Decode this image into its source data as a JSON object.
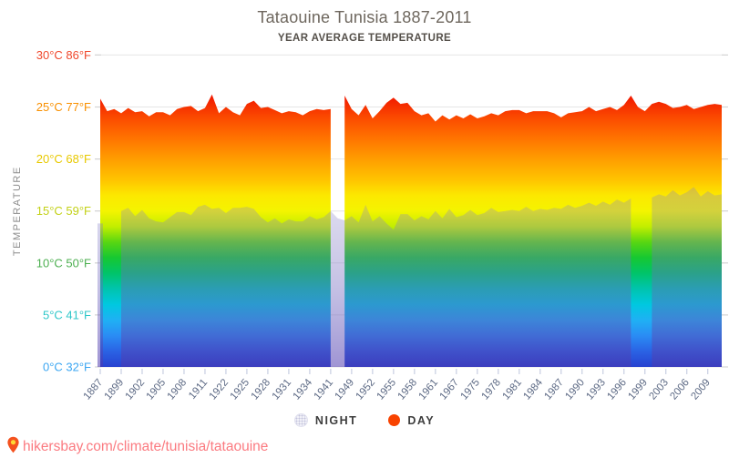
{
  "header": {
    "title": "Tataouine Tunisia 1887-2011",
    "subtitle": "YEAR AVERAGE TEMPERATURE"
  },
  "legend": {
    "night_label": "NIGHT",
    "day_label": "DAY",
    "night_color": "#ededf6",
    "day_color": "#f84300"
  },
  "footer": {
    "url_text": "hikersbay.com/climate/tunisia/tataouine",
    "text_color": "#fb7a80",
    "pin_color": "#f4511e",
    "pin_dot_color": "#fdd835"
  },
  "axes": {
    "y_title": "TEMPERATURE",
    "y_title_color": "#8c8c8c",
    "y_ticks": [
      {
        "label": "30°C 86°F",
        "t": 30,
        "color": "#f0482c"
      },
      {
        "label": "25°C 77°F",
        "t": 25,
        "color": "#f99000"
      },
      {
        "label": "20°C 68°F",
        "t": 20,
        "color": "#e8c900"
      },
      {
        "label": "15°C 59°F",
        "t": 15,
        "color": "#c3d117"
      },
      {
        "label": "10°C 50°F",
        "t": 10,
        "color": "#4caf50"
      },
      {
        "label": "5°C 41°F",
        "t": 5,
        "color": "#2ec7c9"
      },
      {
        "label": "0°C 32°F",
        "t": 0,
        "color": "#3ba6f2"
      }
    ],
    "x_labels": [
      "1887",
      "1899",
      "1902",
      "1905",
      "1908",
      "1911",
      "1922",
      "1925",
      "1928",
      "1931",
      "1934",
      "1941",
      "1949",
      "1952",
      "1955",
      "1958",
      "1961",
      "1967",
      "1975",
      "1978",
      "1981",
      "1984",
      "1987",
      "1990",
      "1993",
      "1996",
      "1999",
      "2003",
      "2006",
      "2009"
    ],
    "x_label_color": "#5d6a85",
    "tick_color": "#ccd2e4",
    "grid_color": "#e6e6e6",
    "dash_color": "#d4d4d4"
  },
  "chart_data": {
    "type": "area",
    "title": "Tataouine Tunisia 1887-2011",
    "subtitle": "YEAR AVERAGE TEMPERATURE",
    "ylabel": "TEMPERATURE",
    "ylim": [
      0,
      30
    ],
    "grid": true,
    "legend_position": "bottom",
    "label_every": 3,
    "categories": [
      1887,
      1897,
      1898,
      1899,
      1900,
      1901,
      1902,
      1903,
      1904,
      1905,
      1906,
      1907,
      1908,
      1909,
      1910,
      1911,
      1912,
      1921,
      1922,
      1923,
      1924,
      1925,
      1926,
      1927,
      1928,
      1929,
      1930,
      1931,
      1932,
      1933,
      1934,
      1935,
      1936,
      1941,
      1947,
      1948,
      1949,
      1950,
      1951,
      1952,
      1953,
      1954,
      1955,
      1956,
      1957,
      1958,
      1959,
      1960,
      1961,
      1962,
      1966,
      1967,
      1968,
      1974,
      1975,
      1976,
      1977,
      1978,
      1979,
      1980,
      1981,
      1982,
      1983,
      1984,
      1985,
      1986,
      1987,
      1988,
      1989,
      1990,
      1991,
      1992,
      1993,
      1994,
      1995,
      1996,
      1997,
      1998,
      1999,
      2000,
      2001,
      2003,
      2004,
      2005,
      2006,
      2007,
      2008,
      2009,
      2010,
      2011
    ],
    "series": [
      {
        "name": "DAY",
        "values": [
          25.8,
          24.6,
          24.8,
          24.4,
          24.9,
          24.5,
          24.6,
          24.1,
          24.5,
          24.5,
          24.2,
          24.8,
          25.0,
          25.1,
          24.6,
          24.9,
          26.2,
          24.4,
          25.0,
          24.5,
          24.2,
          25.3,
          25.6,
          24.9,
          25.0,
          24.7,
          24.4,
          24.6,
          24.5,
          24.2,
          24.6,
          24.8,
          24.7,
          24.8,
          null,
          26.1,
          24.8,
          24.2,
          25.2,
          23.9,
          24.6,
          25.4,
          25.9,
          25.3,
          25.4,
          24.6,
          24.2,
          24.4,
          23.6,
          24.2,
          23.8,
          24.2,
          23.9,
          24.3,
          23.9,
          24.1,
          24.4,
          24.2,
          24.6,
          24.7,
          24.7,
          24.4,
          24.6,
          24.6,
          24.6,
          24.4,
          24.0,
          24.4,
          24.5,
          24.6,
          25.0,
          24.6,
          24.8,
          25.0,
          24.7,
          25.2,
          26.1,
          25.0,
          24.6,
          25.3,
          25.5,
          25.3,
          24.9,
          25.0,
          25.2,
          24.8,
          25.0,
          25.2,
          25.3,
          25.2
        ]
      },
      {
        "name": "NIGHT",
        "values": [
          13.8,
          null,
          null,
          15.0,
          15.3,
          14.5,
          15.1,
          14.3,
          14.0,
          13.9,
          14.4,
          14.9,
          14.9,
          14.6,
          15.4,
          15.6,
          15.2,
          15.3,
          14.8,
          15.3,
          15.3,
          15.4,
          15.2,
          14.4,
          13.9,
          14.3,
          13.8,
          14.2,
          14.0,
          14.0,
          14.5,
          14.2,
          14.4,
          15.0,
          14.3,
          14.1,
          14.5,
          13.9,
          15.6,
          14.0,
          14.5,
          13.8,
          13.2,
          14.7,
          14.7,
          14.1,
          14.5,
          14.2,
          15.0,
          14.3,
          15.2,
          14.4,
          14.6,
          15.1,
          14.6,
          14.8,
          15.3,
          14.9,
          15.0,
          15.1,
          15.0,
          15.4,
          15.0,
          15.2,
          15.1,
          15.3,
          15.2,
          15.6,
          15.3,
          15.5,
          15.8,
          15.5,
          15.9,
          15.6,
          16.1,
          15.8,
          16.2,
          null,
          null,
          16.3,
          16.6,
          16.4,
          17.0,
          16.5,
          16.8,
          17.3,
          16.4,
          16.9,
          16.5,
          16.6
        ]
      }
    ],
    "day_gradient_stops": [
      [
        0,
        "#2742d0"
      ],
      [
        1.5,
        "#2a62e4"
      ],
      [
        3,
        "#2a8cf4"
      ],
      [
        4.5,
        "#1fb0f4"
      ],
      [
        6,
        "#00c8e0"
      ],
      [
        7.5,
        "#00c4ae"
      ],
      [
        9,
        "#00c46a"
      ],
      [
        10.5,
        "#16c832"
      ],
      [
        12,
        "#58d612"
      ],
      [
        13.5,
        "#c2ee00"
      ],
      [
        15,
        "#f4f400"
      ],
      [
        16.5,
        "#fce800"
      ],
      [
        18,
        "#ffc400"
      ],
      [
        20,
        "#ff9d00"
      ],
      [
        22,
        "#ff7300"
      ],
      [
        24,
        "#fb4a00"
      ],
      [
        26,
        "#f11900"
      ],
      [
        30,
        "#e81000"
      ]
    ],
    "night_overlay": {
      "top": "rgba(135,130,200,0.30)",
      "mid": "rgba(108,98,188,0.40)",
      "bottom": "rgba(78,58,175,0.54)"
    }
  }
}
